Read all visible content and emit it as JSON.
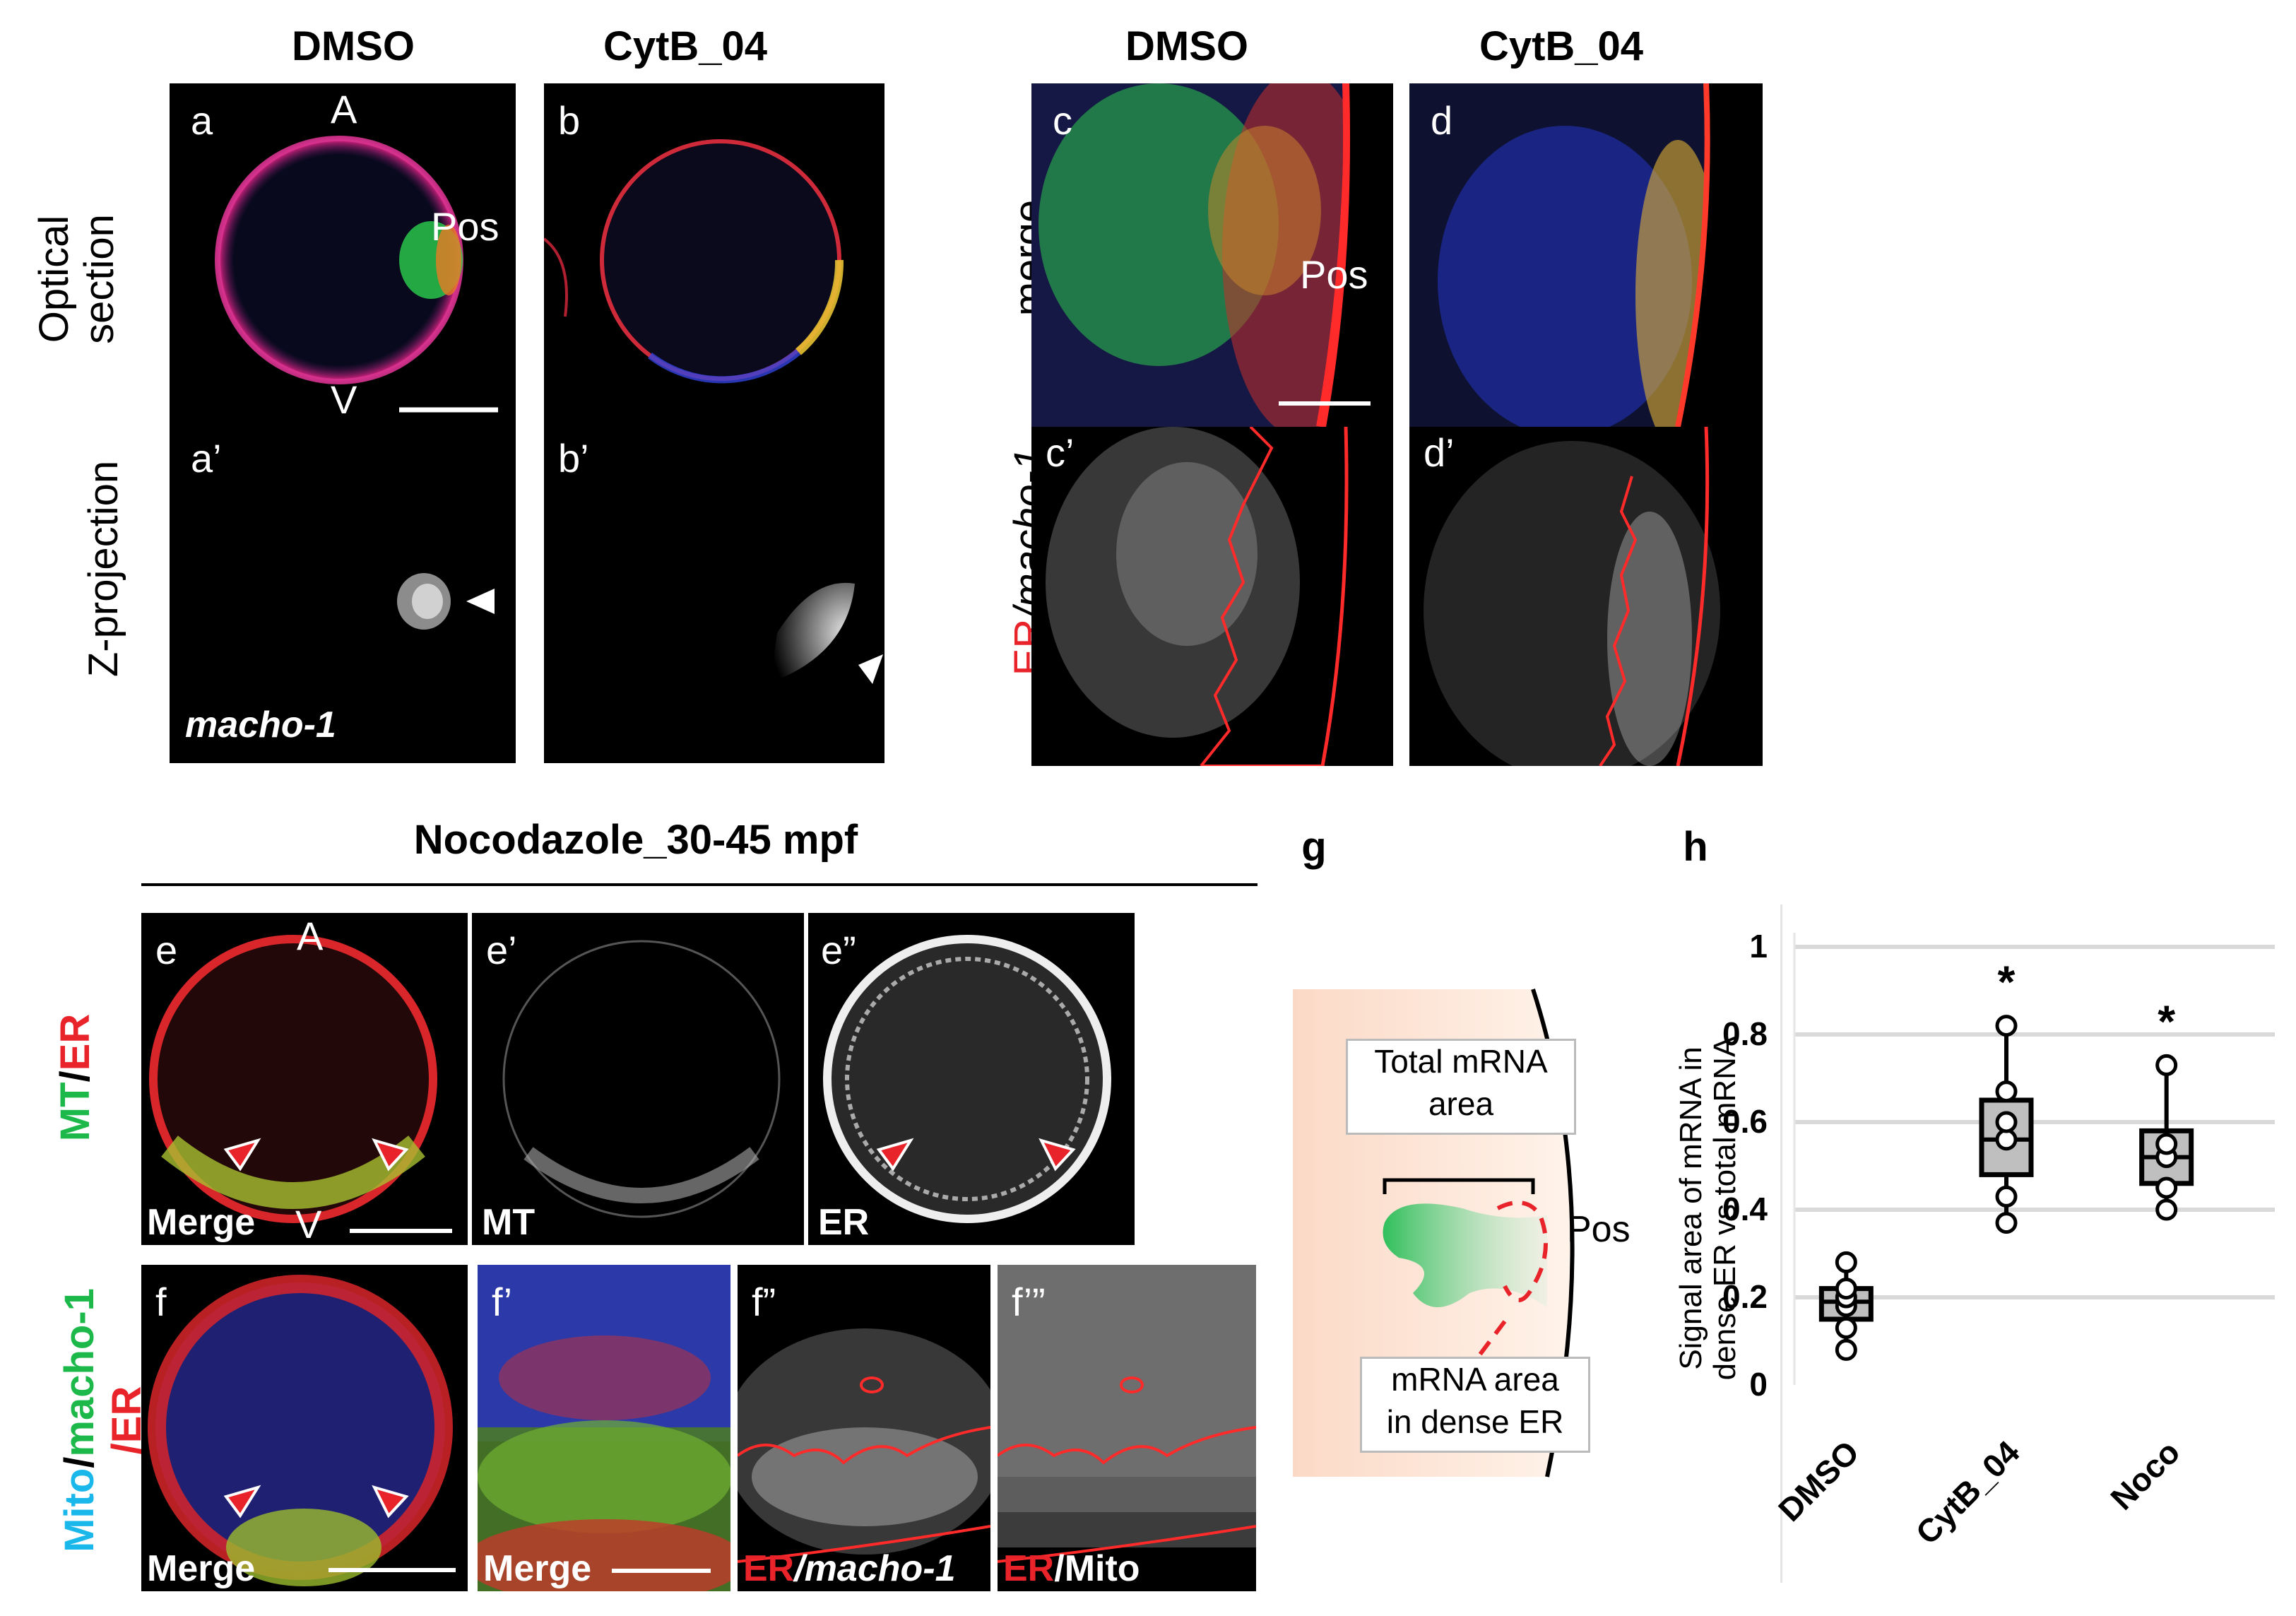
{
  "top_headers": {
    "dmso_left": "DMSO",
    "cytb_left": "CytB_04",
    "dmso_right": "DMSO",
    "cytb_right": "CytB_04"
  },
  "row_labels": {
    "optical": "Optical\nsection",
    "zproj": "Z-projection",
    "merge": "merge",
    "er_macho": "ER/macho-1",
    "er_part": "ER",
    "macho_part": "/macho-1"
  },
  "panels": {
    "a": "a",
    "a_prime": "a’",
    "b": "b",
    "b_prime": "b’",
    "c": "c",
    "c_prime": "c’",
    "d": "d",
    "d_prime": "d’",
    "e": "e",
    "e_prime": "e’",
    "e_dprime": "e”",
    "f": "f",
    "f_prime": "f’",
    "f_dprime": "f”",
    "f_tprime": "f’”",
    "g": "g",
    "h": "h"
  },
  "panel_text": {
    "A": "A",
    "V": "V",
    "Pos": "Pos",
    "macho": "macho-1",
    "merge": "Merge",
    "mt": "MT",
    "er": "ER",
    "er_macho_er": "ER",
    "er_macho_rest": "/macho-1",
    "er_mito_er": "ER",
    "er_mito_rest": "/Mito"
  },
  "section_title": "Nocodazole_30-45 mpf",
  "side_labels": {
    "mt": "MT",
    "slash": "/",
    "er": "ER",
    "mito": "Mito",
    "macho": "macho-1",
    "slash_er": "/ER"
  },
  "diagram": {
    "total_label_1": "Total mRNA",
    "total_label_2": "area",
    "pos": "Pos",
    "dense_1": "mRNA area",
    "dense_2": "in dense ER"
  },
  "chart_data": {
    "type": "box",
    "ylabel_line1": "Signal area of mRNA in",
    "ylabel_line2": "dense ER vs total mRNA",
    "ylim": [
      0,
      1
    ],
    "yticks": [
      "0",
      "0.2",
      "0.4",
      "0.6",
      "0.8",
      "1"
    ],
    "categories": [
      "DMSO",
      "CytB_04",
      "Noco"
    ],
    "boxes": [
      {
        "name": "DMSO",
        "min": 0.08,
        "q1": 0.15,
        "median": 0.19,
        "q3": 0.22,
        "max": 0.28,
        "points": [
          0.08,
          0.13,
          0.18,
          0.2,
          0.22,
          0.28
        ],
        "sig": ""
      },
      {
        "name": "CytB_04",
        "min": 0.37,
        "q1": 0.48,
        "median": 0.56,
        "q3": 0.65,
        "max": 0.82,
        "points": [
          0.37,
          0.43,
          0.56,
          0.6,
          0.67,
          0.82
        ],
        "sig": "*"
      },
      {
        "name": "Noco",
        "min": 0.4,
        "q1": 0.46,
        "median": 0.52,
        "q3": 0.58,
        "max": 0.73,
        "points": [
          0.4,
          0.45,
          0.52,
          0.55,
          0.73
        ],
        "sig": "*"
      }
    ],
    "grid": true,
    "colors": {
      "box": "#bfbfbf",
      "grid": "#d9d9d9"
    }
  },
  "colors": {
    "red": "#e8232a",
    "green": "#1db84a",
    "cyan": "#1ab7ea",
    "blue": "#2231c9",
    "diagram_bg": "#fbd9c6",
    "diagram_green": "#2fbf5a"
  }
}
